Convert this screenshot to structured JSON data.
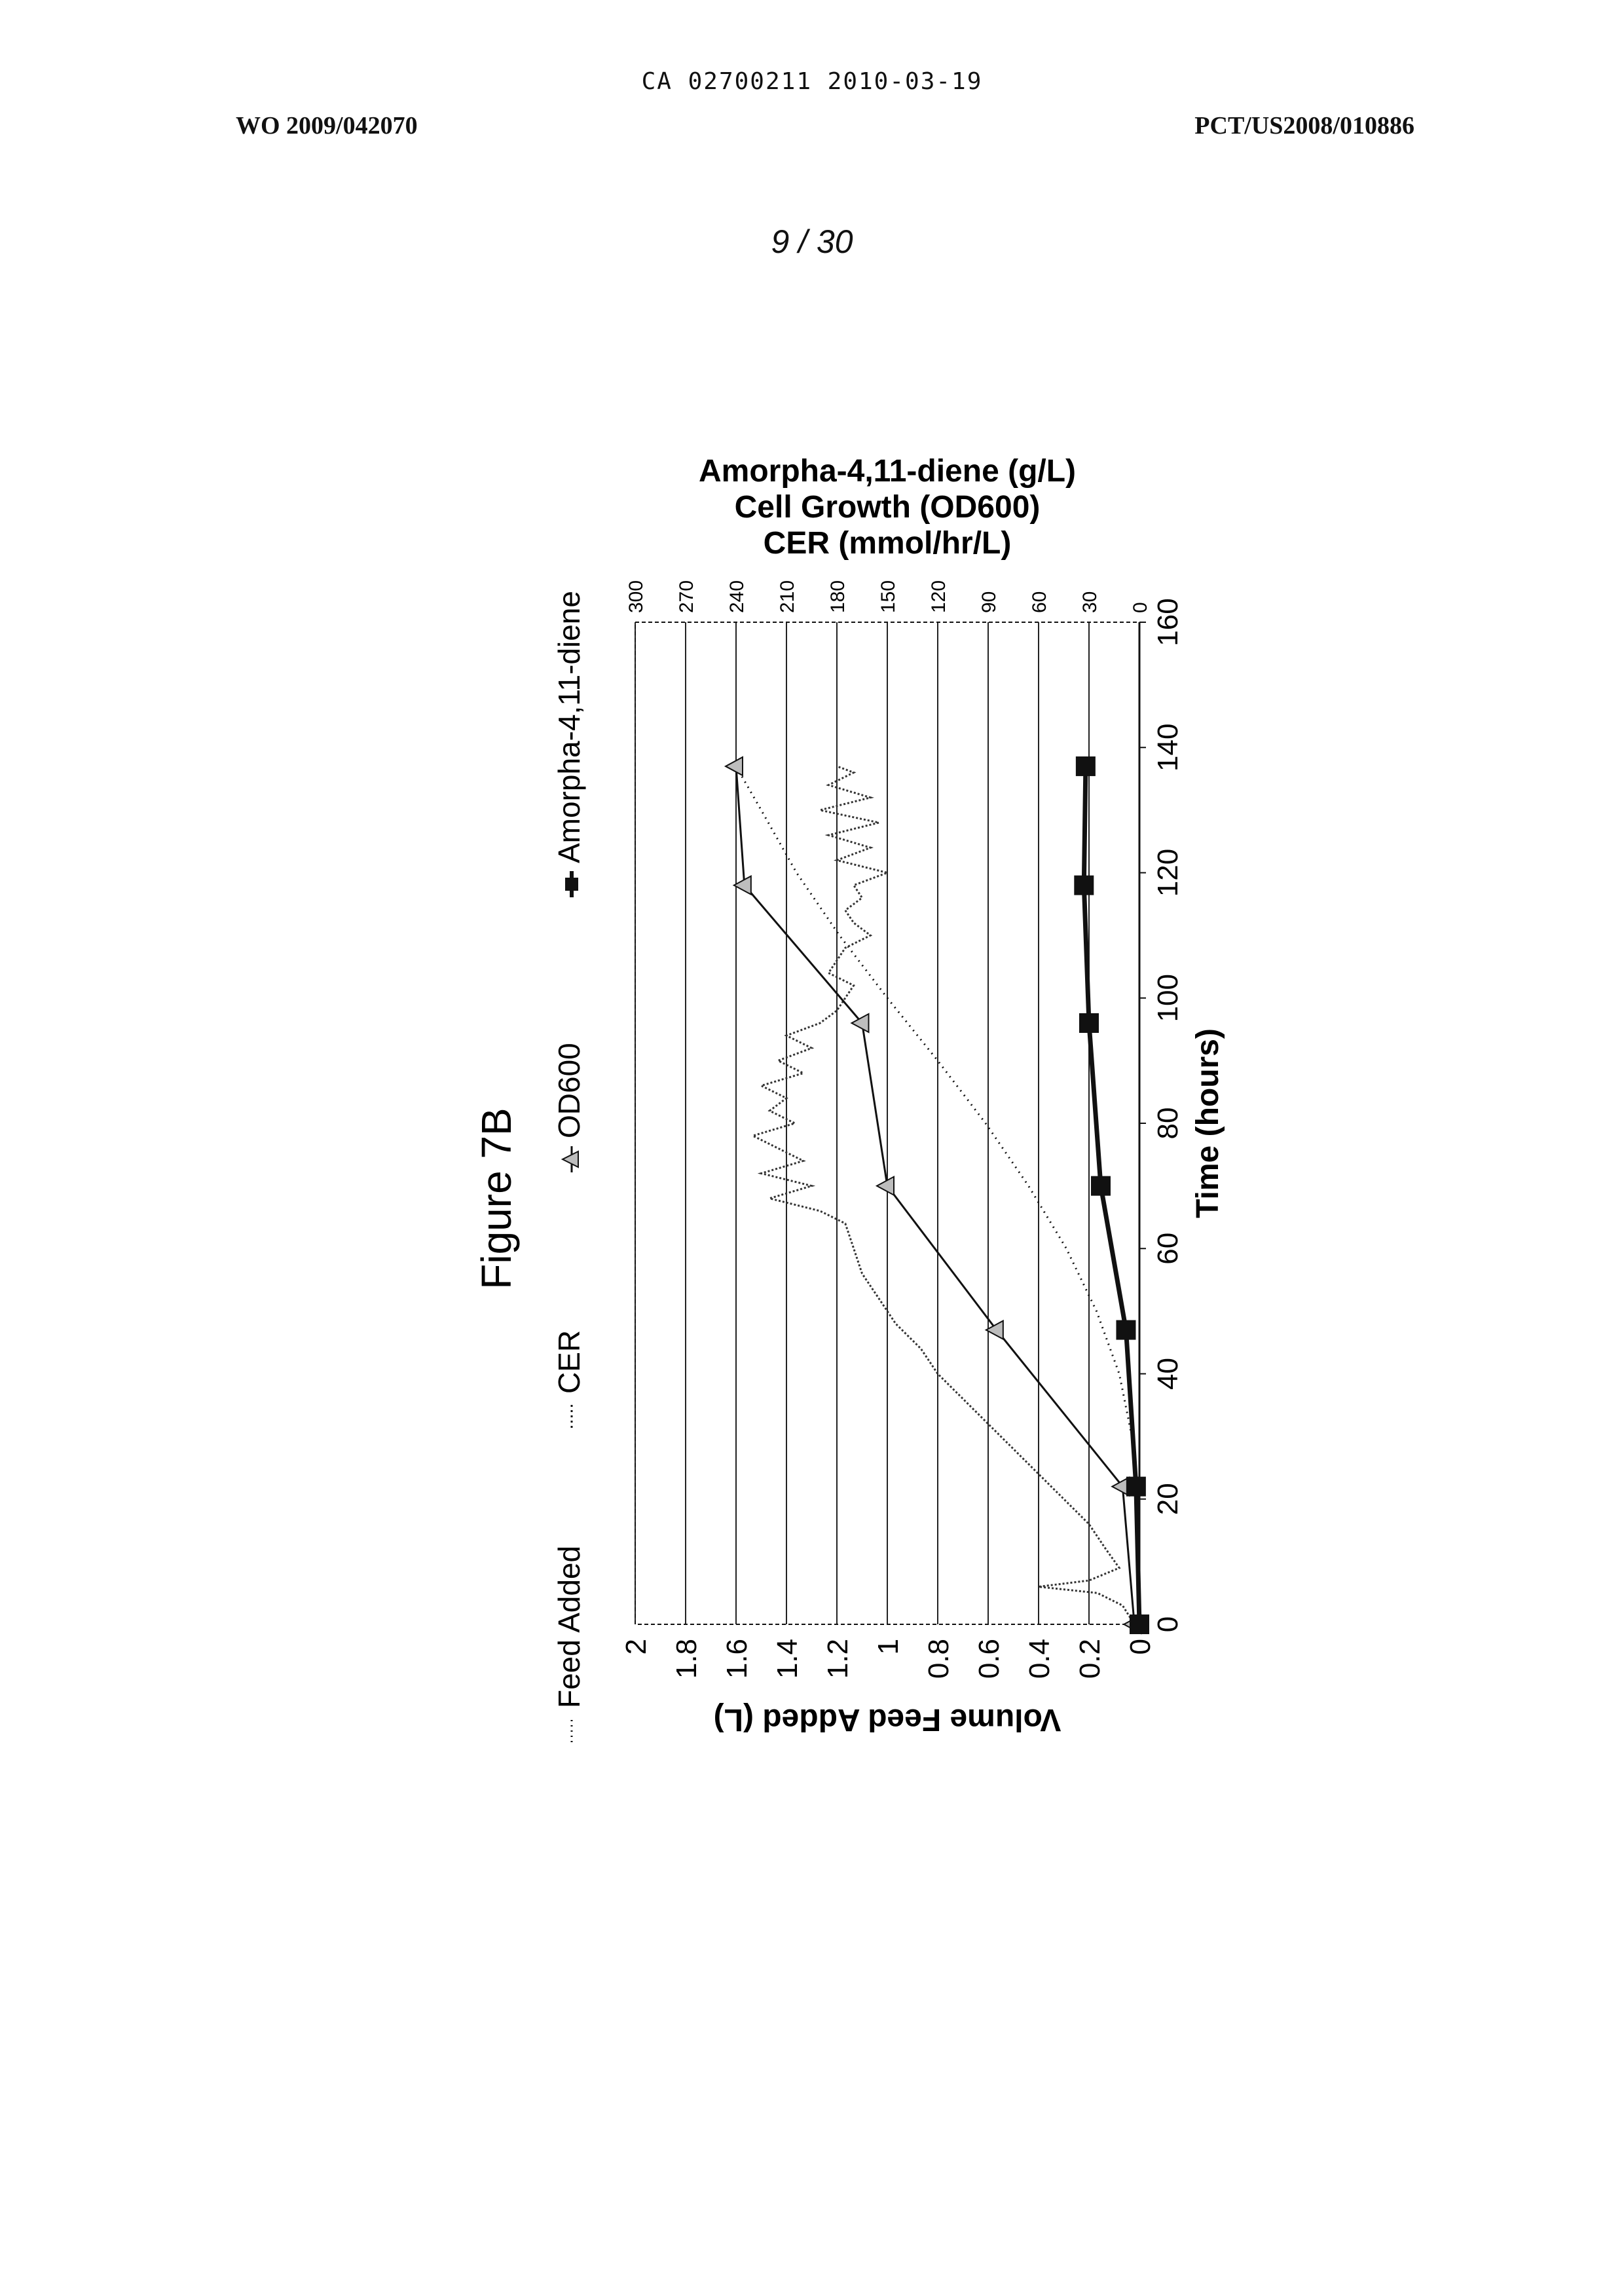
{
  "header": {
    "doc_id": "CA 02700211 2010-03-19",
    "left": "WO 2009/042070",
    "right": "PCT/US2008/010886",
    "page": "9 / 30"
  },
  "figure": {
    "title": "Figure 7B"
  },
  "chart_data": {
    "type": "line",
    "orientation": "rotated 90 degrees counter-clockwise on the page",
    "xlabel": "Time (hours)",
    "xlim": [
      0,
      160
    ],
    "x_ticks": [
      0,
      20,
      40,
      60,
      80,
      100,
      120,
      140,
      160
    ],
    "y_left": {
      "label": "Volume Feed Added (L)",
      "lim": [
        0,
        2
      ],
      "ticks": [
        "0",
        "0.2",
        "0.4",
        "0.6",
        "0.8",
        "1",
        "1.2",
        "1.4",
        "1.6",
        "1.8",
        "2"
      ]
    },
    "y_right": {
      "label_lines": [
        "CER (mmol/hr/L)",
        "Cell Growth (OD600)",
        "Amorpha-4,11-diene (g/L)"
      ],
      "lim": [
        0,
        300
      ],
      "ticks": [
        "0",
        "30",
        "60",
        "90",
        "120",
        "150",
        "180",
        "210",
        "240",
        "270",
        "300"
      ]
    },
    "grid": "horizontal lines at left-axis ticks",
    "legend_position": "top, above plot area",
    "series": [
      {
        "name": "Feed Added",
        "axis": "left",
        "style": "dotted",
        "marker": "none",
        "x": [
          0,
          20,
          30,
          40,
          50,
          60,
          70,
          80,
          90,
          100,
          110,
          120,
          130,
          137
        ],
        "y": [
          0,
          0,
          0.03,
          0.08,
          0.17,
          0.29,
          0.44,
          0.61,
          0.8,
          1.0,
          1.19,
          1.36,
          1.5,
          1.6
        ]
      },
      {
        "name": "CER",
        "axis": "right",
        "style": "noisy dotted",
        "marker": "none",
        "x": [
          0,
          3,
          5,
          6,
          7,
          9,
          12,
          16,
          20,
          24,
          28,
          32,
          36,
          40,
          44,
          48,
          52,
          56,
          60,
          64,
          66,
          68,
          70,
          72,
          74,
          76,
          78,
          80,
          82,
          84,
          86,
          88,
          90,
          92,
          94,
          96,
          98,
          100,
          102,
          104,
          106,
          108,
          110,
          112,
          114,
          116,
          118,
          120,
          122,
          124,
          126,
          128,
          130,
          132,
          134,
          136,
          137
        ],
        "y": [
          3,
          10,
          25,
          60,
          30,
          12,
          20,
          30,
          45,
          60,
          75,
          90,
          105,
          120,
          130,
          145,
          155,
          165,
          170,
          175,
          190,
          220,
          195,
          225,
          200,
          215,
          230,
          205,
          220,
          210,
          225,
          200,
          215,
          195,
          210,
          190,
          180,
          175,
          170,
          185,
          180,
          175,
          160,
          170,
          175,
          165,
          170,
          150,
          180,
          160,
          185,
          155,
          190,
          160,
          185,
          170,
          180
        ]
      },
      {
        "name": "OD600",
        "axis": "right",
        "style": "solid",
        "marker": "triangle",
        "x": [
          0,
          22,
          47,
          70,
          96,
          118,
          137
        ],
        "y": [
          3,
          10,
          85,
          150,
          165,
          235,
          240
        ]
      },
      {
        "name": "Amorpha-4,11-diene",
        "axis": "right",
        "style": "solid-bold",
        "marker": "square",
        "x": [
          0,
          22,
          47,
          70,
          96,
          118,
          137
        ],
        "y": [
          0,
          2,
          8,
          23,
          30,
          33,
          32
        ]
      }
    ],
    "colors": {
      "line": "#111111",
      "grid": "#222222",
      "od600_marker_fill": "#bdbdbd"
    }
  }
}
